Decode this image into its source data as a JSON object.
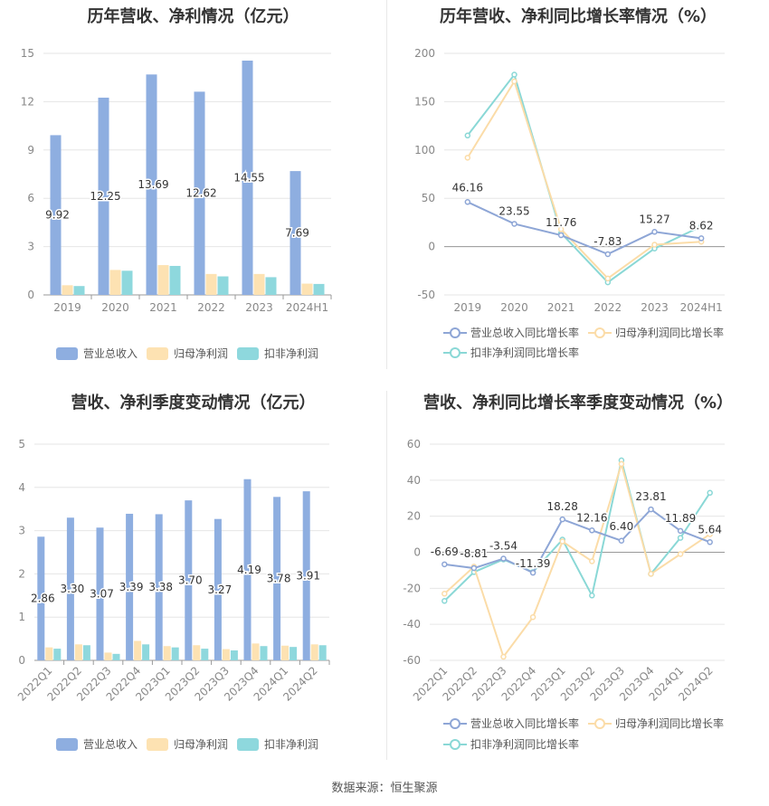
{
  "source_text": "数据来源：恒生聚源",
  "colors": {
    "revenue": "#8eaee0",
    "parent_np": "#fde2b2",
    "deduct_np": "#8ed8dd",
    "revenue_line": "#8ea6d6",
    "parent_line": "#fbdca8",
    "deduct_line": "#8ad8d6",
    "grid": "#e6e6e6",
    "axis_text": "#888888"
  },
  "chart_data": [
    {
      "id": "annual-bar",
      "type": "bar",
      "title": "历年营收、净利情况（亿元）",
      "categories": [
        "2019",
        "2020",
        "2021",
        "2022",
        "2023",
        "2024H1"
      ],
      "series": [
        {
          "name": "营业总收入",
          "values": [
            9.92,
            12.25,
            13.69,
            12.62,
            14.55,
            7.69
          ],
          "labels": [
            "9.92",
            "12.25",
            "13.69",
            "12.62",
            "14.55",
            "7.69"
          ]
        },
        {
          "name": "归母净利润",
          "values": [
            0.6,
            1.55,
            1.85,
            1.3,
            1.3,
            0.7
          ]
        },
        {
          "name": "扣非净利润",
          "values": [
            0.55,
            1.5,
            1.8,
            1.15,
            1.1,
            0.68
          ]
        }
      ],
      "ylim": [
        0,
        15
      ],
      "yticks": [
        "0",
        "3",
        "6",
        "9",
        "12",
        "15"
      ],
      "legend": "bottom"
    },
    {
      "id": "annual-line",
      "type": "line",
      "title": "历年营收、净利同比增长率情况（%）",
      "categories": [
        "2019",
        "2020",
        "2021",
        "2022",
        "2023",
        "2024H1"
      ],
      "series": [
        {
          "name": "营业总收入同比增长率",
          "values": [
            46.16,
            23.55,
            11.76,
            -7.83,
            15.27,
            8.62
          ],
          "labels": [
            "46.16",
            "23.55",
            "11.76",
            "-7.83",
            "15.27",
            "8.62"
          ]
        },
        {
          "name": "归母净利润同比增长率",
          "values": [
            92,
            171,
            18,
            -33,
            2,
            5
          ]
        },
        {
          "name": "扣非净利润同比增长率",
          "values": [
            115,
            178,
            14,
            -37,
            -2,
            21
          ]
        }
      ],
      "ylim": [
        -50,
        200
      ],
      "yticks": [
        "-50",
        "0",
        "50",
        "100",
        "150",
        "200"
      ],
      "legend": "bottom"
    },
    {
      "id": "quarter-bar",
      "type": "bar",
      "title": "营收、净利季度变动情况（亿元）",
      "categories": [
        "2022Q1",
        "2022Q2",
        "2022Q3",
        "2022Q4",
        "2023Q1",
        "2023Q2",
        "2023Q3",
        "2023Q4",
        "2024Q1",
        "2024Q2"
      ],
      "series": [
        {
          "name": "营业总收入",
          "values": [
            2.86,
            3.3,
            3.07,
            3.39,
            3.38,
            3.7,
            3.27,
            4.19,
            3.78,
            3.91
          ],
          "labels": [
            "2.86",
            "3.30",
            "3.07",
            "3.39",
            "3.38",
            "3.70",
            "3.27",
            "4.19",
            "3.78",
            "3.91"
          ]
        },
        {
          "name": "归母净利润",
          "values": [
            0.3,
            0.37,
            0.18,
            0.45,
            0.33,
            0.35,
            0.26,
            0.39,
            0.34,
            0.37
          ]
        },
        {
          "name": "扣非净利润",
          "values": [
            0.27,
            0.35,
            0.15,
            0.37,
            0.3,
            0.27,
            0.23,
            0.33,
            0.31,
            0.35
          ]
        }
      ],
      "ylim": [
        0,
        5
      ],
      "yticks": [
        "0",
        "1",
        "2",
        "3",
        "4",
        "5"
      ],
      "legend": "bottom"
    },
    {
      "id": "quarter-line",
      "type": "line",
      "title": "营收、净利同比增长率季度变动情况（%）",
      "categories": [
        "2022Q1",
        "2022Q2",
        "2022Q3",
        "2022Q4",
        "2023Q1",
        "2023Q2",
        "2023Q3",
        "2023Q4",
        "2024Q1",
        "2024Q2"
      ],
      "series": [
        {
          "name": "营业总收入同比增长率",
          "values": [
            -6.69,
            -8.81,
            -3.54,
            -11.39,
            18.28,
            12.16,
            6.4,
            23.81,
            11.89,
            5.64
          ],
          "labels": [
            "-6.69",
            "-8.81",
            "-3.54",
            "-11.39",
            "18.28",
            "12.16",
            "6.40",
            "23.81",
            "11.89",
            "5.64"
          ]
        },
        {
          "name": "归母净利润同比增长率",
          "values": [
            -23,
            -8,
            -58,
            -36,
            6,
            -5,
            49,
            -12,
            -1,
            10
          ]
        },
        {
          "name": "扣非净利润同比增长率",
          "values": [
            -27,
            -11,
            -4,
            -11,
            7,
            -24,
            51,
            -12,
            8,
            33
          ]
        }
      ],
      "ylim": [
        -60,
        60
      ],
      "yticks": [
        "-60",
        "-40",
        "-20",
        "0",
        "20",
        "40",
        "60"
      ],
      "legend": "bottom"
    }
  ]
}
